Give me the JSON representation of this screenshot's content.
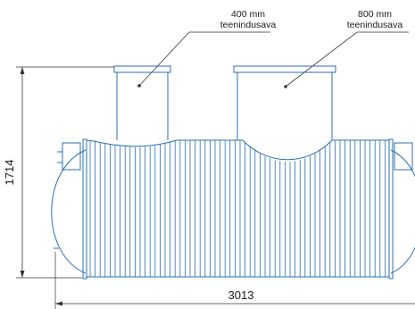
{
  "callouts": {
    "left": {
      "line1": "400 mm",
      "line2": "teenindusava"
    },
    "right": {
      "line1": "800 mm",
      "line2": "teenindusava"
    }
  },
  "dimensions": {
    "height": "1714",
    "length": "3013"
  },
  "colors": {
    "tank_line": "#2a6fb5",
    "dimension_line": "#333333",
    "background": "#ffffff"
  }
}
